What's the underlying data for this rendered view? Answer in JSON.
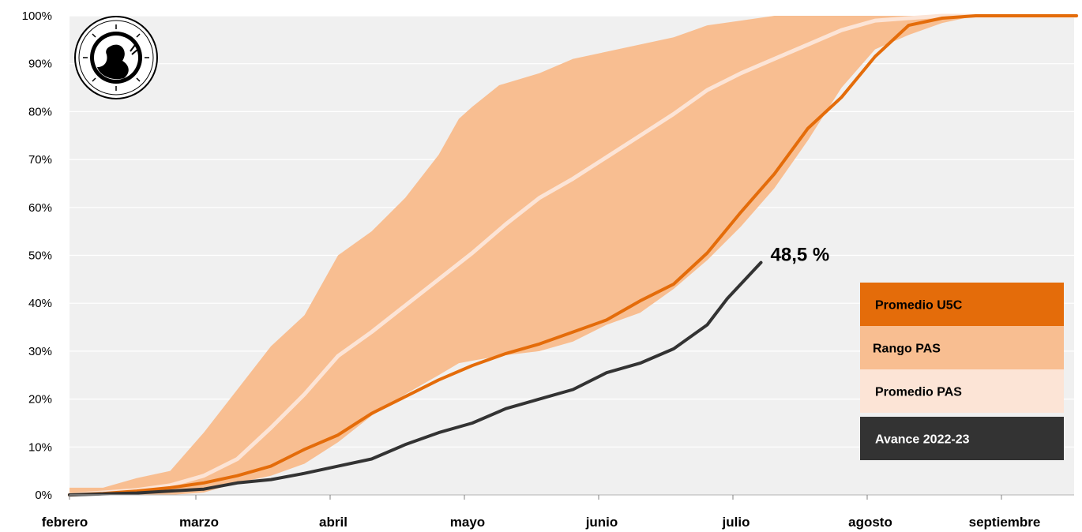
{
  "chart_data": {
    "type": "area",
    "x_categories": [
      "febrero",
      "marzo",
      "abril",
      "mayo",
      "junio",
      "julio",
      "agosto",
      "septiembre"
    ],
    "y_ticks": [
      "0%",
      "10%",
      "20%",
      "30%",
      "40%",
      "50%",
      "60%",
      "70%",
      "80%",
      "90%",
      "100%"
    ],
    "ylim": [
      0,
      100
    ],
    "grid": "horizontal",
    "legend_position": "right",
    "colors": {
      "promedio_u5c": "#e46c0a",
      "rango_pas": "#f8be91",
      "promedio_pas": "#fce4d6",
      "avance": "#333333",
      "plot_bg": "#f0f0f0",
      "grid": "#ffffff"
    },
    "legend": [
      {
        "key": "promedio_u5c",
        "label": "Promedio U5C"
      },
      {
        "key": "rango_pas",
        "label": "Rango PAS"
      },
      {
        "key": "promedio_pas",
        "label": "Promedio PAS"
      },
      {
        "key": "avance",
        "label": "Avance 2022-23"
      }
    ],
    "annotation": "48,5 %",
    "series": {
      "rango_pas": {
        "x": [
          0,
          0.25,
          0.5,
          0.75,
          1.0,
          1.25,
          1.5,
          1.75,
          2.0,
          2.25,
          2.5,
          2.75,
          2.9,
          3.0,
          3.2,
          3.5,
          3.75,
          4.0,
          4.25,
          4.5,
          4.75,
          5.0,
          5.25,
          5.5,
          5.75,
          6.0,
          6.25,
          6.5,
          6.75,
          7.0,
          7.5
        ],
        "lower": [
          0,
          0,
          0,
          0,
          0.5,
          2.5,
          4,
          6.5,
          11,
          16.5,
          21,
          25,
          27.5,
          28,
          29,
          30,
          32,
          35.5,
          38,
          43,
          49,
          56,
          64,
          74,
          85,
          93,
          96,
          98.5,
          100,
          100,
          100
        ],
        "upper": [
          1.5,
          1.5,
          3.5,
          5,
          13,
          22,
          31,
          37.5,
          50,
          55,
          62,
          71,
          78.5,
          81,
          85.5,
          88,
          91,
          92.5,
          94,
          95.5,
          98,
          99,
          100,
          100,
          100,
          100,
          100,
          100,
          100,
          100,
          100
        ]
      },
      "promedio_pas": {
        "name": "Promedio PAS",
        "x": [
          0,
          0.25,
          0.5,
          0.75,
          1.0,
          1.25,
          1.5,
          1.75,
          2.0,
          2.25,
          2.5,
          2.75,
          3.0,
          3.25,
          3.5,
          3.75,
          4.0,
          4.25,
          4.5,
          4.75,
          5.0,
          5.25,
          5.5,
          5.75,
          6.0,
          6.25,
          6.5,
          6.75,
          7.0,
          7.5
        ],
        "values": [
          0,
          0.5,
          1,
          2,
          4,
          7.5,
          14,
          21,
          29,
          34,
          39.5,
          45,
          50.5,
          56.5,
          62,
          66,
          70.5,
          75,
          79.5,
          84.5,
          88,
          91,
          94,
          97,
          99,
          99.5,
          100,
          100,
          100,
          100
        ]
      },
      "promedio_u5c": {
        "name": "Promedio U5C",
        "x": [
          0,
          0.25,
          0.5,
          0.75,
          1.0,
          1.25,
          1.5,
          1.75,
          2.0,
          2.25,
          2.5,
          2.75,
          3.0,
          3.25,
          3.5,
          3.75,
          4.0,
          4.25,
          4.5,
          4.75,
          5.0,
          5.25,
          5.5,
          5.75,
          6.0,
          6.25,
          6.5,
          6.75,
          7.0,
          7.25,
          7.5
        ],
        "values": [
          0,
          0.3,
          0.8,
          1.5,
          2.5,
          4,
          6,
          9.5,
          12.5,
          17,
          20.5,
          24,
          27,
          29.5,
          31.5,
          34,
          36.5,
          40.5,
          44,
          50.5,
          59,
          67,
          76.5,
          83,
          91.5,
          98,
          99.5,
          100,
          100,
          100,
          100
        ]
      },
      "avance": {
        "name": "Avance 2022-23",
        "x": [
          0,
          0.25,
          0.5,
          0.75,
          1.0,
          1.25,
          1.5,
          1.75,
          2.0,
          2.25,
          2.5,
          2.75,
          3.0,
          3.25,
          3.5,
          3.75,
          4.0,
          4.25,
          4.5,
          4.75,
          4.9,
          5.15
        ],
        "values": [
          0,
          0.2,
          0.4,
          0.8,
          1.2,
          2.5,
          3.2,
          4.5,
          6,
          7.5,
          10.5,
          13,
          15,
          18,
          20,
          22,
          25.5,
          27.5,
          30.5,
          35.5,
          41,
          48.5
        ]
      }
    }
  }
}
